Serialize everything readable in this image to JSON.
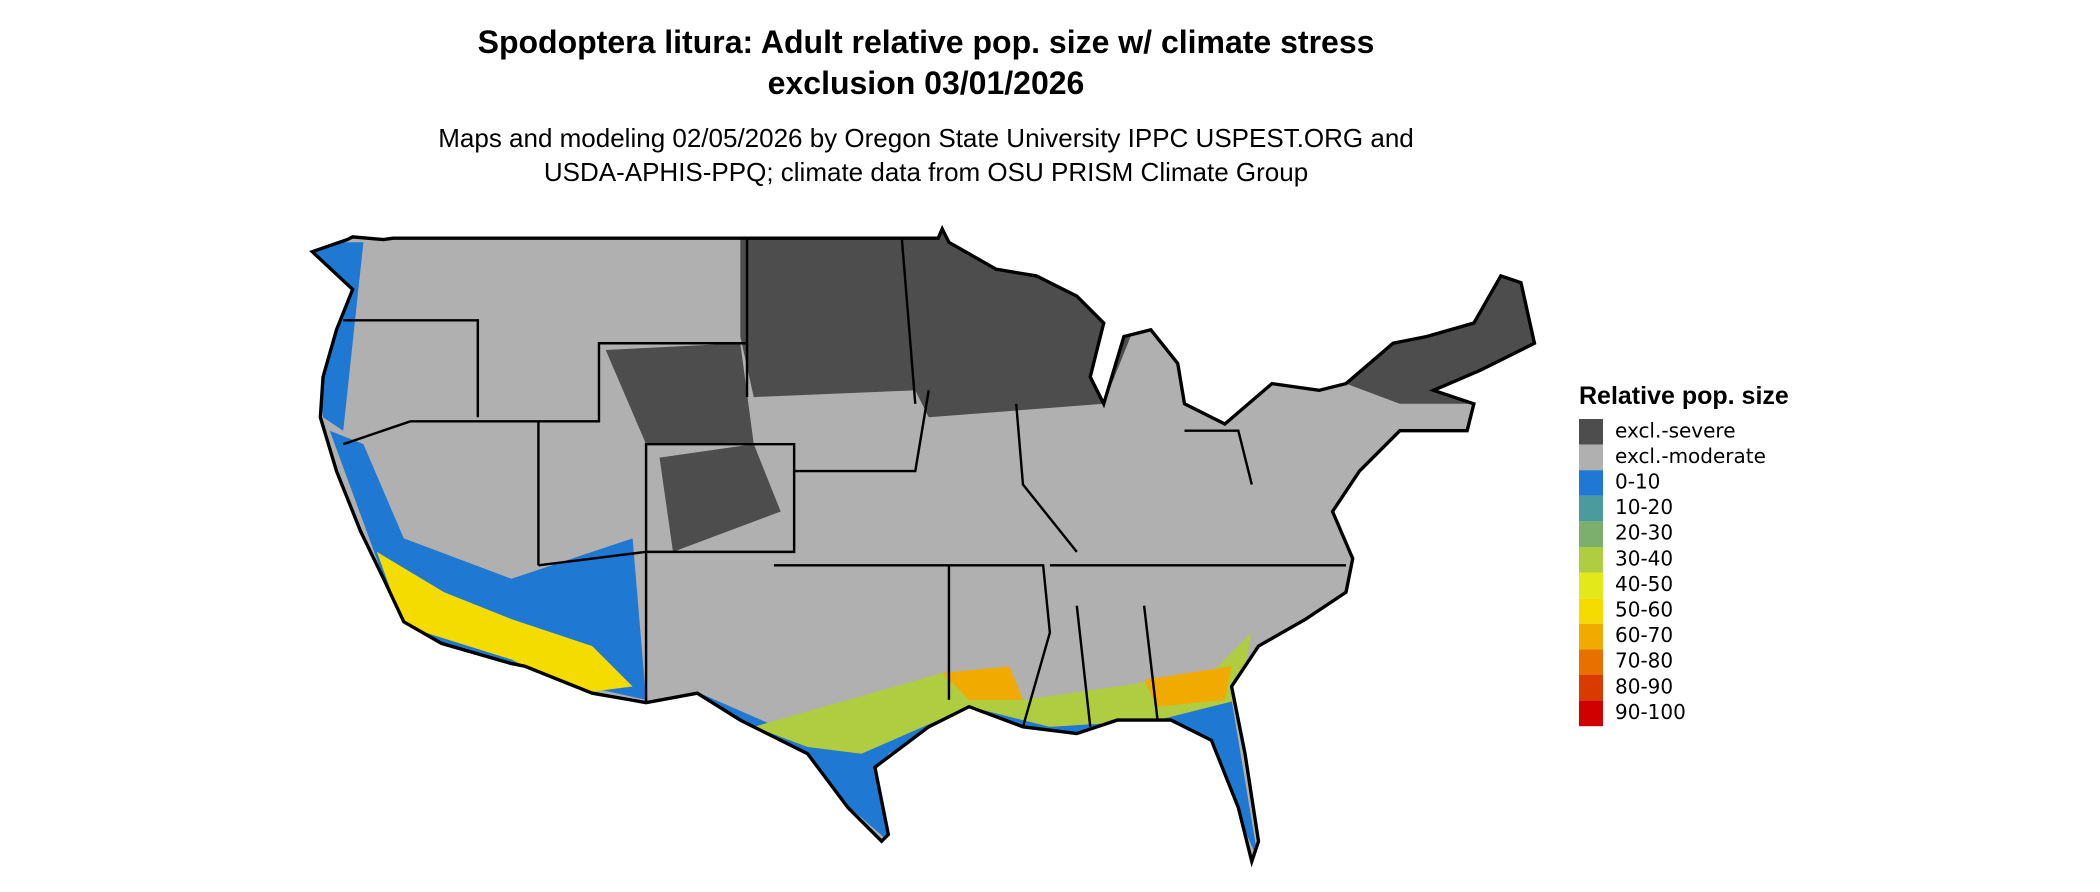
{
  "title": "Spodoptera litura: Adult relative pop. size w/ climate stress exclusion 03/01/2026",
  "subtitle": "Maps and modeling 02/05/2026 by Oregon State University IPPC USPEST.ORG and USDA-APHIS-PPQ; climate data from OSU PRISM Climate Group",
  "legend": {
    "title": "Relative pop. size",
    "items": [
      {
        "label": "excl.-severe",
        "color": "#4d4d4d"
      },
      {
        "label": "excl.-moderate",
        "color": "#b0b0b0"
      },
      {
        "label": "0-10",
        "color": "#1f78d1"
      },
      {
        "label": "10-20",
        "color": "#4a9a9e"
      },
      {
        "label": "20-30",
        "color": "#7caf6e"
      },
      {
        "label": "30-40",
        "color": "#b0cc40"
      },
      {
        "label": "40-50",
        "color": "#e3e81a"
      },
      {
        "label": "50-60",
        "color": "#f5dc00"
      },
      {
        "label": "60-70",
        "color": "#f0aa00"
      },
      {
        "label": "70-80",
        "color": "#e87000"
      },
      {
        "label": "80-90",
        "color": "#d83a00"
      },
      {
        "label": "90-100",
        "color": "#d00000"
      }
    ]
  }
}
